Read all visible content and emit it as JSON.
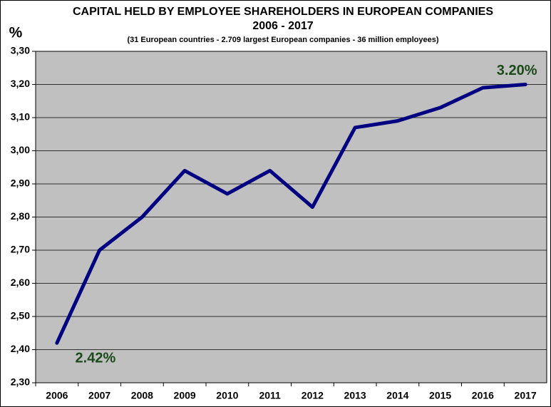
{
  "chart_data": {
    "type": "line",
    "title": "CAPITAL HELD BY EMPLOYEE SHAREHOLDERS IN EUROPEAN COMPANIES",
    "subtitle": "2006 - 2017",
    "note": "(31 European countries - 2.709 largest European companies - 36 million employees)",
    "y_label": "%",
    "categories": [
      "2006",
      "2007",
      "2008",
      "2009",
      "2010",
      "2011",
      "2012",
      "2013",
      "2014",
      "2015",
      "2016",
      "2017"
    ],
    "values": [
      2.42,
      2.7,
      2.8,
      2.94,
      2.87,
      2.94,
      2.83,
      3.07,
      3.09,
      3.13,
      3.19,
      3.2
    ],
    "value_labels": [
      "2.42%",
      null,
      null,
      null,
      null,
      null,
      null,
      null,
      null,
      null,
      null,
      "3.20%"
    ],
    "color": "#000080",
    "label_color": "#1b4a1b",
    "ylim": [
      2.3,
      3.3
    ],
    "yticks": [
      {
        "value": 2.3,
        "label": "2,30"
      },
      {
        "value": 2.4,
        "label": "2,40"
      },
      {
        "value": 2.5,
        "label": "2,50"
      },
      {
        "value": 2.6,
        "label": "2,60"
      },
      {
        "value": 2.7,
        "label": "2,70"
      },
      {
        "value": 2.8,
        "label": "2,80"
      },
      {
        "value": 2.9,
        "label": "2,90"
      },
      {
        "value": 3.0,
        "label": "3,00"
      },
      {
        "value": 3.1,
        "label": "3,10"
      },
      {
        "value": 3.2,
        "label": "3,20"
      },
      {
        "value": 3.3,
        "label": "3,30"
      }
    ],
    "grid": true
  }
}
